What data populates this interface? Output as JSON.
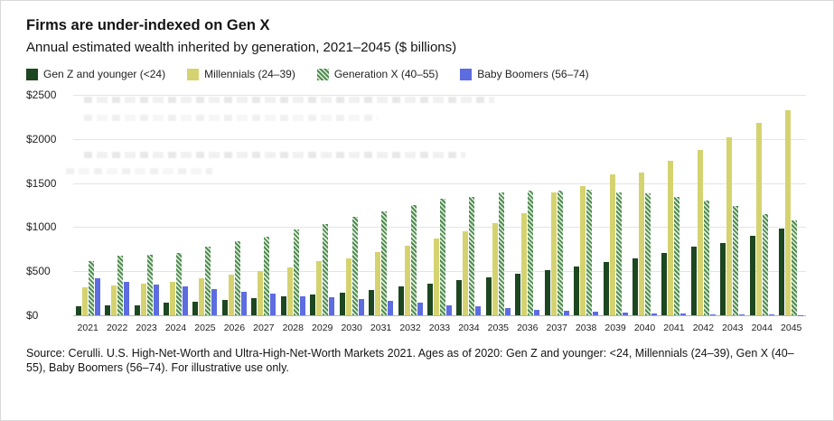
{
  "header": {
    "title": "Firms are under-indexed on Gen X",
    "subtitle": "Annual estimated wealth inherited by generation, 2021–2045 ($ billions)"
  },
  "chart_data": {
    "type": "bar",
    "title": "Annual estimated wealth inherited by generation, 2021–2045 ($ billions)",
    "categories": [
      "2021",
      "2022",
      "2023",
      "2024",
      "2025",
      "2026",
      "2027",
      "2028",
      "2029",
      "2030",
      "2031",
      "2032",
      "2033",
      "2034",
      "2035",
      "2036",
      "2037",
      "2038",
      "2039",
      "2040",
      "2041",
      "2042",
      "2043",
      "2044",
      "2045"
    ],
    "series": [
      {
        "name": "Gen Z and younger (<24)",
        "color": "#1d4721",
        "pattern": "solid",
        "values": [
          100,
          110,
          115,
          140,
          150,
          170,
          195,
          215,
          235,
          255,
          290,
          330,
          360,
          395,
          430,
          470,
          510,
          550,
          600,
          650,
          705,
          775,
          820,
          900,
          980
        ]
      },
      {
        "name": "Millennials (24–39)",
        "color": "#d5d36f",
        "pattern": "solid",
        "values": [
          320,
          340,
          355,
          380,
          420,
          460,
          505,
          545,
          610,
          650,
          720,
          790,
          870,
          955,
          1050,
          1160,
          1390,
          1470,
          1600,
          1620,
          1750,
          1880,
          2020,
          2180,
          2330
        ]
      },
      {
        "name": "Generation X (40–55)",
        "color": "#4e8e50",
        "pattern": "hatch",
        "pattern_color": "#e9efe4",
        "values": [
          620,
          680,
          690,
          710,
          775,
          845,
          890,
          975,
          1040,
          1120,
          1180,
          1250,
          1325,
          1340,
          1390,
          1410,
          1410,
          1420,
          1390,
          1380,
          1340,
          1300,
          1245,
          1150,
          1075
        ]
      },
      {
        "name": "Baby Boomers (56–74)",
        "color": "#5d6ce0",
        "pattern": "solid",
        "values": [
          420,
          380,
          345,
          330,
          300,
          265,
          250,
          220,
          210,
          185,
          160,
          140,
          110,
          100,
          85,
          60,
          50,
          40,
          30,
          25,
          20,
          15,
          12,
          8,
          5
        ]
      }
    ],
    "xlabel": "",
    "ylabel": "$ billions",
    "ylim": [
      0,
      2500
    ],
    "yticks": [
      0,
      500,
      1000,
      1500,
      2000,
      2500
    ],
    "ytick_labels": [
      "$0",
      "$500",
      "$1000",
      "$1500",
      "$2000",
      "$2500"
    ],
    "grid": "horizontal",
    "legend_position": "top"
  },
  "source": {
    "text": "Source: Cerulli. U.S. High-Net-Worth and Ultra-High-Net-Worth Markets 2021. Ages as of 2020: Gen Z and younger: <24, Millennials (24–39), Gen X (40–55), Baby Boomers (56–74). For illustrative use only."
  }
}
